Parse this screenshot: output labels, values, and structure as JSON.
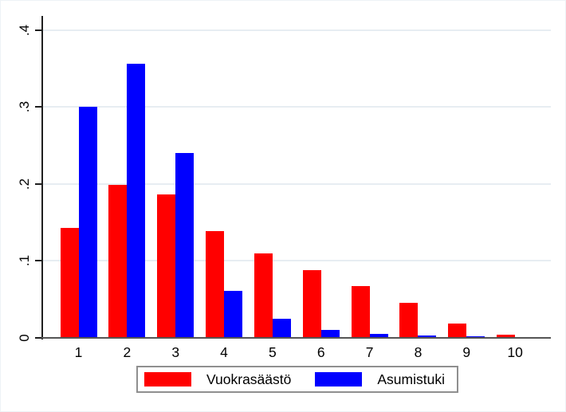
{
  "chart_data": {
    "type": "bar",
    "title": "",
    "xlabel": "",
    "ylabel": "",
    "categories": [
      "1",
      "2",
      "3",
      "4",
      "5",
      "6",
      "7",
      "8",
      "9",
      "10"
    ],
    "series": [
      {
        "name": "Vuokrasäästö",
        "color": "#ff0000",
        "values": [
          0.143,
          0.199,
          0.186,
          0.139,
          0.11,
          0.088,
          0.067,
          0.046,
          0.019,
          0.004
        ]
      },
      {
        "name": "Asumistuki",
        "color": "#0000ff",
        "values": [
          0.3,
          0.356,
          0.24,
          0.061,
          0.025,
          0.01,
          0.005,
          0.003,
          0.002,
          0.001
        ]
      }
    ],
    "ylim": [
      0,
      0.4
    ],
    "yticks": [
      {
        "value": 0.0,
        "label": "0"
      },
      {
        "value": 0.1,
        "label": ".1"
      },
      {
        "value": 0.2,
        "label": ".2"
      },
      {
        "value": 0.3,
        "label": ".3"
      },
      {
        "value": 0.4,
        "label": ".4"
      }
    ],
    "grid": true,
    "gridline_color": "#e7edf2",
    "legend_position": "bottom",
    "background_color": "#ffffff",
    "text_color": "#000000"
  }
}
